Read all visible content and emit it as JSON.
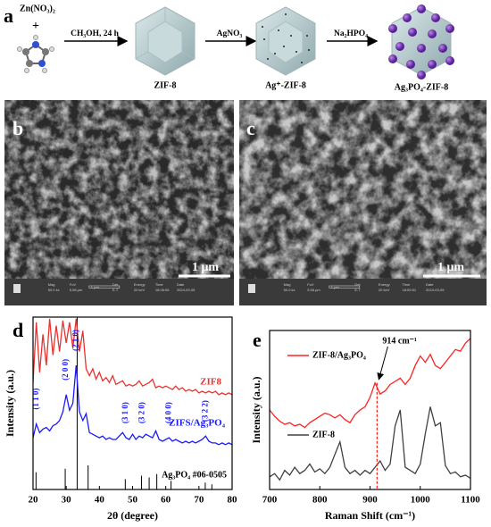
{
  "panel_a": {
    "label": "a",
    "reactant": "Zn(NO₃)₂",
    "plus": "+",
    "steps": [
      {
        "reagent": "CH₃OH, 24 h",
        "product": "ZIF-8"
      },
      {
        "reagent": "AgNO₃",
        "product": "Ag⁺-ZIF-8"
      },
      {
        "reagent": "Na₂HPO₄",
        "product": "Ag₃PO₄-ZIF-8"
      }
    ]
  },
  "panel_b": {
    "label": "b",
    "scale_bar": "1 μm",
    "info": [
      "Mag",
      "50.0 kx",
      "FoV",
      "5.58 μm",
      "1 μm",
      "Det",
      "E-T",
      "Energy",
      "20 keV",
      "Time",
      "18:06:06",
      "Date",
      "2024-03-05"
    ]
  },
  "panel_c": {
    "label": "c",
    "scale_bar": "1 μm",
    "info": [
      "Mag",
      "50.0 kx",
      "FoV",
      "5.58 μm",
      "1 μm",
      "Det",
      "E-T",
      "Energy",
      "20 keV",
      "Time",
      "18:00:51",
      "Date",
      "2024-03-05"
    ]
  },
  "chart_data": [
    {
      "type": "line",
      "panel_label": "d",
      "xlabel": "2θ (degree)",
      "ylabel": "Intensity (a.u.)",
      "xlim": [
        20,
        80
      ],
      "xticks": [
        20,
        30,
        40,
        50,
        60,
        70,
        80
      ],
      "ylim": [
        0,
        100
      ],
      "x": [
        20,
        21,
        22,
        23,
        24,
        25,
        26,
        27,
        28,
        29,
        30,
        31,
        32,
        33,
        34,
        35,
        36,
        37,
        38,
        39,
        40,
        41,
        42,
        43,
        44,
        45,
        46,
        47,
        48,
        49,
        50,
        51,
        52,
        53,
        54,
        55,
        56,
        57,
        58,
        59,
        60,
        61,
        62,
        63,
        64,
        65,
        66,
        67,
        68,
        69,
        70,
        71,
        72,
        73,
        74,
        75,
        76,
        77,
        78,
        79,
        80
      ],
      "series": [
        {
          "name": "ZIF8",
          "color": "#e8332f",
          "values": [
            62,
            97,
            68,
            90,
            72,
            99,
            78,
            95,
            80,
            98,
            85,
            97,
            82,
            99,
            80,
            92,
            70,
            66,
            70,
            64,
            68,
            63,
            65,
            62,
            66,
            61,
            62,
            63,
            60,
            61,
            60,
            61,
            63,
            60,
            61,
            62,
            64,
            59,
            60,
            59,
            60,
            59,
            58,
            60,
            58,
            59,
            57,
            58,
            57,
            58,
            56,
            57,
            56,
            57,
            56,
            57,
            55,
            56,
            55,
            56,
            55
          ]
        },
        {
          "name": "ZIFS/Ag₃PO₄",
          "color": "#1a1aff",
          "values": [
            30,
            38,
            33,
            35,
            36,
            34,
            37,
            38,
            40,
            45,
            55,
            46,
            50,
            72,
            45,
            40,
            44,
            33,
            32,
            31,
            30,
            31,
            29,
            30,
            29,
            29,
            31,
            33,
            30,
            29,
            32,
            29,
            31,
            30,
            32,
            31,
            30,
            34,
            29,
            28,
            29,
            30,
            28,
            29,
            28,
            27,
            28,
            27,
            28,
            27,
            28,
            29,
            31,
            28,
            27,
            27,
            26,
            27,
            26,
            27,
            26
          ]
        }
      ],
      "reference": {
        "name": "Ag₃PO₄ #06-0505",
        "color": "#000000",
        "x": [
          20.9,
          29.7,
          33.3,
          36.6,
          47.8,
          52.7,
          55.0,
          57.3,
          61.6,
          71.9,
          73.9
        ],
        "values": [
          10,
          12,
          100,
          14,
          6,
          8,
          7,
          9,
          5,
          4,
          3
        ]
      },
      "annotations": [
        {
          "text": "(1 1 0)",
          "x": 21
        },
        {
          "text": "(2 0 0)",
          "x": 30
        },
        {
          "text": "(2 1 0)",
          "x": 33
        },
        {
          "text": "(3 1 0)",
          "x": 48
        },
        {
          "text": "(3 2 0)",
          "x": 53
        },
        {
          "text": "(4 0 0)",
          "x": 61
        },
        {
          "text": "(3 2 2)",
          "x": 72
        }
      ]
    },
    {
      "type": "line",
      "panel_label": "e",
      "xlabel": "Raman Shift (cm⁻¹)",
      "ylabel": "Intensity (a.u.)",
      "xlim": [
        700,
        1100
      ],
      "xticks": [
        700,
        800,
        900,
        1000,
        1100
      ],
      "ylim": [
        0,
        100
      ],
      "x": [
        700,
        710,
        720,
        730,
        740,
        750,
        760,
        770,
        780,
        790,
        800,
        810,
        820,
        830,
        840,
        850,
        860,
        870,
        880,
        890,
        900,
        910,
        920,
        930,
        940,
        950,
        960,
        970,
        980,
        990,
        1000,
        1010,
        1020,
        1030,
        1040,
        1050,
        1060,
        1070,
        1080,
        1090,
        1100
      ],
      "series": [
        {
          "name": "ZIF-8/Ag₃PO₄",
          "color": "#ff2020",
          "values": [
            50,
            46,
            43,
            41,
            42,
            40,
            41,
            39,
            42,
            44,
            46,
            48,
            47,
            45,
            47,
            44,
            42,
            47,
            50,
            52,
            58,
            67,
            60,
            62,
            66,
            68,
            70,
            66,
            70,
            78,
            84,
            80,
            85,
            78,
            76,
            80,
            84,
            88,
            87,
            92,
            95
          ]
        },
        {
          "name": "ZIF-8",
          "color": "#404040",
          "values": [
            8,
            10,
            6,
            12,
            9,
            14,
            10,
            12,
            16,
            11,
            13,
            10,
            14,
            22,
            30,
            14,
            10,
            12,
            9,
            12,
            10,
            14,
            18,
            12,
            16,
            40,
            50,
            14,
            12,
            10,
            16,
            35,
            52,
            40,
            42,
            15,
            10,
            11,
            8,
            9,
            7
          ]
        }
      ],
      "marker": {
        "text": "914 cm⁻¹",
        "x": 914
      }
    }
  ]
}
